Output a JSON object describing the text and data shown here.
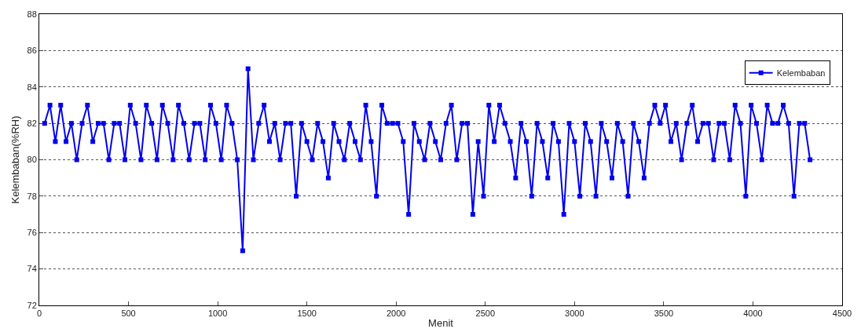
{
  "chart_data": {
    "type": "line",
    "xlabel": "Menit",
    "ylabel": "Kelembaban(%RH)",
    "x": [
      30,
      60,
      90,
      120,
      150,
      180,
      210,
      240,
      270,
      300,
      330,
      360,
      390,
      420,
      450,
      480,
      510,
      540,
      570,
      600,
      630,
      660,
      690,
      720,
      750,
      780,
      810,
      840,
      870,
      900,
      930,
      960,
      990,
      1020,
      1050,
      1080,
      1110,
      1140,
      1170,
      1200,
      1230,
      1260,
      1290,
      1320,
      1350,
      1380,
      1410,
      1440,
      1470,
      1500,
      1530,
      1560,
      1590,
      1620,
      1650,
      1680,
      1710,
      1740,
      1770,
      1800,
      1830,
      1860,
      1890,
      1920,
      1950,
      1980,
      2010,
      2040,
      2070,
      2100,
      2130,
      2160,
      2190,
      2220,
      2250,
      2280,
      2310,
      2340,
      2370,
      2400,
      2430,
      2460,
      2490,
      2520,
      2550,
      2580,
      2610,
      2640,
      2670,
      2700,
      2730,
      2760,
      2790,
      2820,
      2850,
      2880,
      2910,
      2940,
      2970,
      3000,
      3030,
      3060,
      3090,
      3120,
      3150,
      3180,
      3210,
      3240,
      3270,
      3300,
      3330,
      3360,
      3390,
      3420,
      3450,
      3480,
      3510,
      3540,
      3570,
      3600,
      3630,
      3660,
      3690,
      3720,
      3750,
      3780,
      3810,
      3840,
      3870,
      3900,
      3930,
      3960,
      3990,
      4020,
      4050,
      4080,
      4110,
      4140,
      4170,
      4200,
      4230,
      4260,
      4290,
      4320
    ],
    "series": [
      {
        "name": "Kelembaban",
        "color": "#0000ee",
        "values": [
          82,
          83,
          81,
          83,
          81,
          82,
          80,
          82,
          83,
          81,
          82,
          82,
          80,
          82,
          82,
          80,
          83,
          82,
          80,
          83,
          82,
          80,
          83,
          82,
          80,
          83,
          82,
          80,
          82,
          82,
          80,
          83,
          82,
          80,
          83,
          82,
          80,
          75,
          85,
          80,
          82,
          83,
          81,
          82,
          80,
          82,
          82,
          78,
          82,
          81,
          80,
          82,
          81,
          79,
          82,
          81,
          80,
          82,
          81,
          80,
          83,
          81,
          78,
          83,
          82,
          82,
          82,
          81,
          77,
          82,
          81,
          80,
          82,
          81,
          80,
          82,
          83,
          80,
          82,
          82,
          77,
          81,
          78,
          83,
          81,
          83,
          82,
          81,
          79,
          82,
          81,
          78,
          82,
          81,
          79,
          82,
          81,
          77,
          82,
          81,
          78,
          82,
          81,
          78,
          82,
          81,
          79,
          82,
          81,
          78,
          82,
          81,
          79,
          82,
          83,
          82,
          83,
          81,
          82,
          80,
          82,
          83,
          81,
          82,
          82,
          80,
          82,
          82,
          80,
          83,
          82,
          78,
          83,
          82,
          80,
          83,
          82,
          82,
          83,
          82,
          78,
          82,
          82,
          80
        ]
      }
    ],
    "xlim": [
      0,
      4500
    ],
    "xticks": [
      0,
      500,
      1000,
      1500,
      2000,
      2500,
      3000,
      3500,
      4000,
      4500
    ],
    "ylim": [
      72,
      88
    ],
    "yticks": [
      72,
      74,
      76,
      78,
      80,
      82,
      84,
      86,
      88
    ],
    "grid": "y",
    "legend": "top right",
    "marker": "square",
    "line_style": "solid"
  }
}
